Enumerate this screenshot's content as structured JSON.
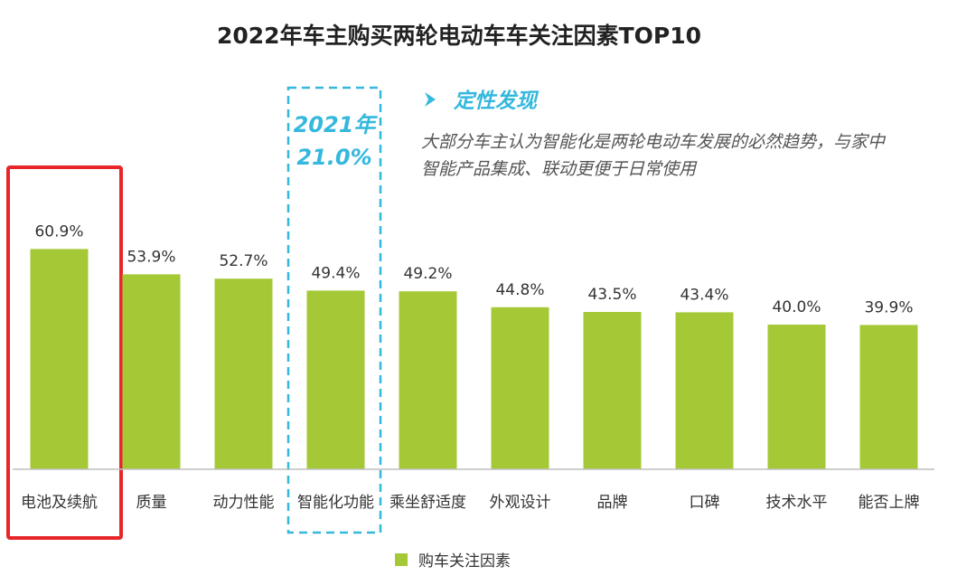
{
  "chart_data": {
    "type": "bar",
    "title": "2022年车主购买两轮电动车车关注因素TOP10",
    "categories": [
      "电池及续航",
      "质量",
      "动力性能",
      "智能化功能",
      "乘坐舒适度",
      "外观设计",
      "品牌",
      "口碑",
      "技术水平",
      "能否上牌"
    ],
    "values": [
      60.9,
      53.9,
      52.7,
      49.4,
      49.2,
      44.8,
      43.5,
      43.4,
      40.0,
      39.9
    ],
    "value_labels": [
      "60.9%",
      "53.9%",
      "52.7%",
      "49.4%",
      "49.2%",
      "44.8%",
      "43.5%",
      "43.4%",
      "40.0%",
      "39.9%"
    ],
    "unit": "%",
    "ylim": [
      0,
      100
    ],
    "legend": [
      "购车关注因素"
    ],
    "legend_position": "bottom-center",
    "grid": false,
    "highlight_red_category": "电池及续航",
    "highlight_dashed_category": "智能化功能",
    "annotation_year": "2021年",
    "annotation_year_value": "21.0%",
    "insight_heading": "定性发现",
    "insight_lines": [
      "大部分车主认为智能化是两轮电动车发展的必然趋势，与家中",
      "智能产品集成、联动更便于日常使用"
    ]
  },
  "colors": {
    "bar": "#a5c936",
    "highlight_red": "#e8262a",
    "highlight_dashed": "#35b8dd",
    "axis": "#bfbfbf",
    "accent": "#35b8dd"
  },
  "icons": {
    "bullet": "arrow-right-icon"
  }
}
